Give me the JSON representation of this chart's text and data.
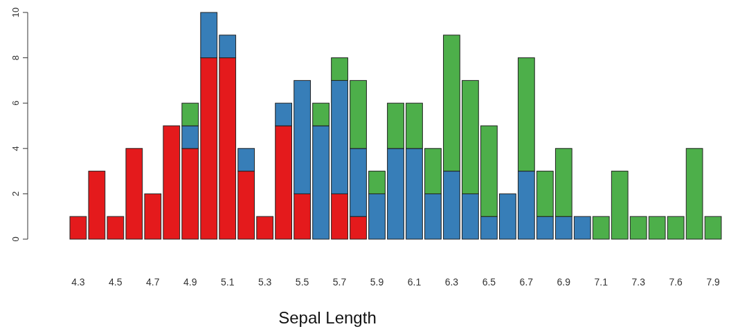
{
  "chart_data": {
    "type": "bar",
    "stacked": true,
    "xlabel": "Sepal Length",
    "categories": [
      "4.3",
      null,
      "4.5",
      null,
      "4.7",
      null,
      "4.9",
      null,
      "5.1",
      null,
      "5.3",
      null,
      "5.5",
      null,
      "5.7",
      null,
      "5.9",
      null,
      "6.1",
      null,
      "6.3",
      null,
      "6.5",
      null,
      "6.7",
      null,
      "6.9",
      null,
      "7.1",
      null,
      "7.3",
      null,
      "7.6",
      null,
      "7.9"
    ],
    "series": [
      {
        "color": "#e41a1c",
        "values": [
          1,
          3,
          1,
          4,
          2,
          5,
          4,
          8,
          8,
          3,
          1,
          5,
          2,
          0,
          2,
          1,
          0,
          0,
          0,
          0,
          0,
          0,
          0,
          0,
          0,
          0,
          0,
          0,
          0,
          0,
          0,
          0,
          0,
          0,
          0
        ]
      },
      {
        "color": "#377eb8",
        "values": [
          0,
          0,
          0,
          0,
          0,
          0,
          1,
          2,
          1,
          1,
          0,
          1,
          5,
          5,
          5,
          3,
          2,
          4,
          4,
          2,
          3,
          2,
          1,
          2,
          3,
          1,
          1,
          1,
          0,
          0,
          0,
          0,
          0,
          0,
          0
        ]
      },
      {
        "color": "#4daf4a",
        "values": [
          0,
          0,
          0,
          0,
          0,
          0,
          1,
          0,
          0,
          0,
          0,
          0,
          0,
          1,
          1,
          3,
          1,
          2,
          2,
          2,
          6,
          5,
          4,
          0,
          5,
          2,
          3,
          0,
          1,
          3,
          1,
          1,
          1,
          4,
          1
        ]
      }
    ],
    "ylim": [
      0,
      10
    ],
    "yticks": [
      0,
      2,
      4,
      6,
      8,
      10
    ],
    "grid": false
  }
}
